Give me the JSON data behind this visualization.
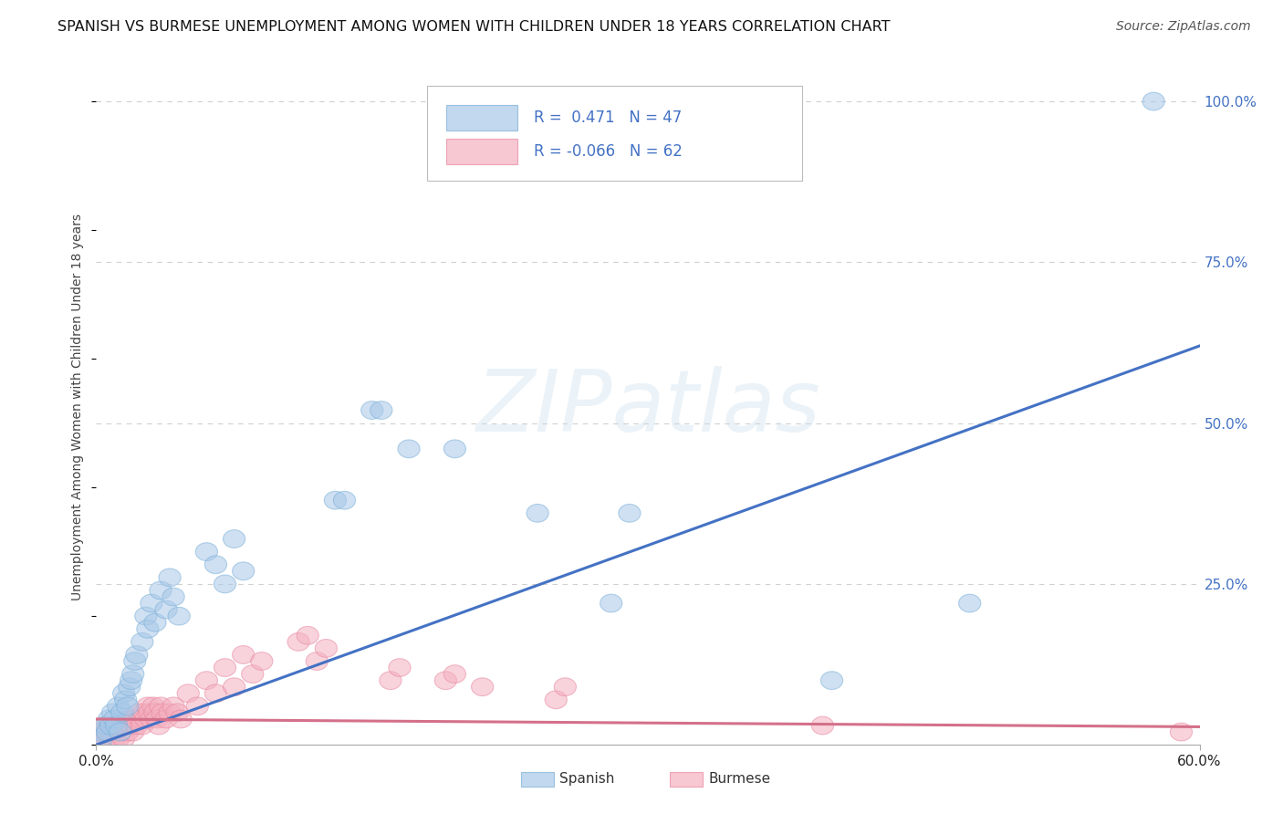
{
  "title": "SPANISH VS BURMESE UNEMPLOYMENT AMONG WOMEN WITH CHILDREN UNDER 18 YEARS CORRELATION CHART",
  "source": "Source: ZipAtlas.com",
  "xlim": [
    0.0,
    0.6
  ],
  "ylim": [
    0.0,
    1.05
  ],
  "ylabel": "Unemployment Among Women with Children Under 18 years",
  "spanish_color": "#a8c8e8",
  "spanish_edge": "#7ab0d8",
  "burmese_color": "#f4b0c0",
  "burmese_edge": "#e888a0",
  "line_spanish_color": "#4472c4",
  "line_burmese_color": "#d4708a",
  "background_color": "#ffffff",
  "grid_color": "#d0d0d0",
  "title_fontsize": 11.5,
  "source_fontsize": 10,
  "axis_label_fontsize": 10,
  "tick_fontsize": 11,
  "legend_r1": "R =  0.471   N = 47",
  "legend_r2": "R = -0.066   N = 62",
  "legend_color": "#4472c4",
  "watermark": "ZIPatlas",
  "spanish_line": [
    [
      0.0,
      0.0
    ],
    [
      0.6,
      0.62
    ]
  ],
  "burmese_line": [
    [
      0.0,
      0.04
    ],
    [
      0.6,
      0.028
    ]
  ],
  "spanish_scatter": [
    [
      0.002,
      0.02
    ],
    [
      0.003,
      0.01
    ],
    [
      0.005,
      0.03
    ],
    [
      0.006,
      0.02
    ],
    [
      0.007,
      0.04
    ],
    [
      0.008,
      0.03
    ],
    [
      0.009,
      0.05
    ],
    [
      0.01,
      0.04
    ],
    [
      0.011,
      0.03
    ],
    [
      0.012,
      0.06
    ],
    [
      0.013,
      0.02
    ],
    [
      0.014,
      0.05
    ],
    [
      0.015,
      0.08
    ],
    [
      0.016,
      0.07
    ],
    [
      0.017,
      0.06
    ],
    [
      0.018,
      0.09
    ],
    [
      0.019,
      0.1
    ],
    [
      0.02,
      0.11
    ],
    [
      0.021,
      0.13
    ],
    [
      0.022,
      0.14
    ],
    [
      0.025,
      0.16
    ],
    [
      0.027,
      0.2
    ],
    [
      0.028,
      0.18
    ],
    [
      0.03,
      0.22
    ],
    [
      0.032,
      0.19
    ],
    [
      0.035,
      0.24
    ],
    [
      0.038,
      0.21
    ],
    [
      0.04,
      0.26
    ],
    [
      0.042,
      0.23
    ],
    [
      0.045,
      0.2
    ],
    [
      0.06,
      0.3
    ],
    [
      0.065,
      0.28
    ],
    [
      0.07,
      0.25
    ],
    [
      0.075,
      0.32
    ],
    [
      0.08,
      0.27
    ],
    [
      0.13,
      0.38
    ],
    [
      0.135,
      0.38
    ],
    [
      0.15,
      0.52
    ],
    [
      0.155,
      0.52
    ],
    [
      0.17,
      0.46
    ],
    [
      0.195,
      0.46
    ],
    [
      0.24,
      0.36
    ],
    [
      0.28,
      0.22
    ],
    [
      0.29,
      0.36
    ],
    [
      0.4,
      0.1
    ],
    [
      0.475,
      0.22
    ],
    [
      0.575,
      1.0
    ]
  ],
  "burmese_scatter": [
    [
      0.002,
      0.01
    ],
    [
      0.003,
      0.02
    ],
    [
      0.004,
      0.01
    ],
    [
      0.005,
      0.03
    ],
    [
      0.006,
      0.02
    ],
    [
      0.007,
      0.01
    ],
    [
      0.008,
      0.02
    ],
    [
      0.009,
      0.03
    ],
    [
      0.01,
      0.01
    ],
    [
      0.011,
      0.02
    ],
    [
      0.012,
      0.01
    ],
    [
      0.013,
      0.03
    ],
    [
      0.014,
      0.02
    ],
    [
      0.015,
      0.01
    ],
    [
      0.016,
      0.03
    ],
    [
      0.017,
      0.02
    ],
    [
      0.018,
      0.04
    ],
    [
      0.019,
      0.03
    ],
    [
      0.02,
      0.02
    ],
    [
      0.021,
      0.04
    ],
    [
      0.022,
      0.03
    ],
    [
      0.023,
      0.05
    ],
    [
      0.024,
      0.04
    ],
    [
      0.025,
      0.03
    ],
    [
      0.026,
      0.05
    ],
    [
      0.027,
      0.04
    ],
    [
      0.028,
      0.06
    ],
    [
      0.029,
      0.05
    ],
    [
      0.03,
      0.04
    ],
    [
      0.031,
      0.06
    ],
    [
      0.032,
      0.05
    ],
    [
      0.033,
      0.04
    ],
    [
      0.034,
      0.03
    ],
    [
      0.035,
      0.06
    ],
    [
      0.036,
      0.05
    ],
    [
      0.038,
      0.04
    ],
    [
      0.04,
      0.05
    ],
    [
      0.042,
      0.06
    ],
    [
      0.044,
      0.05
    ],
    [
      0.046,
      0.04
    ],
    [
      0.05,
      0.08
    ],
    [
      0.055,
      0.06
    ],
    [
      0.06,
      0.1
    ],
    [
      0.065,
      0.08
    ],
    [
      0.07,
      0.12
    ],
    [
      0.075,
      0.09
    ],
    [
      0.08,
      0.14
    ],
    [
      0.085,
      0.11
    ],
    [
      0.09,
      0.13
    ],
    [
      0.11,
      0.16
    ],
    [
      0.115,
      0.17
    ],
    [
      0.12,
      0.13
    ],
    [
      0.125,
      0.15
    ],
    [
      0.16,
      0.1
    ],
    [
      0.165,
      0.12
    ],
    [
      0.19,
      0.1
    ],
    [
      0.195,
      0.11
    ],
    [
      0.21,
      0.09
    ],
    [
      0.25,
      0.07
    ],
    [
      0.255,
      0.09
    ],
    [
      0.395,
      0.03
    ],
    [
      0.59,
      0.02
    ]
  ]
}
